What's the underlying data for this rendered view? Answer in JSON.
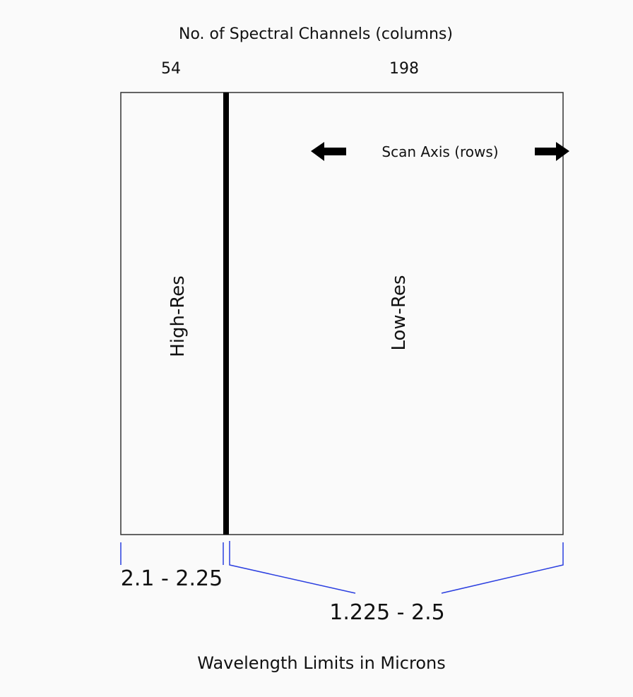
{
  "header": {
    "title": "No. of Spectral Channels (columns)",
    "high_res_count": "54",
    "low_res_count": "198"
  },
  "panels": {
    "high_res_label": "High-Res",
    "low_res_label": "Low-Res"
  },
  "scan_axis": {
    "label": "Scan Axis (rows)"
  },
  "wavelengths": {
    "high_res_range": "2.1 - 2.25",
    "low_res_range": "1.225 - 2.5",
    "footer": "Wavelength Limits in Microns"
  },
  "colors": {
    "frame": "#333333",
    "divider": "#000000",
    "bracket": "#2b3fe0",
    "text": "#111111"
  }
}
